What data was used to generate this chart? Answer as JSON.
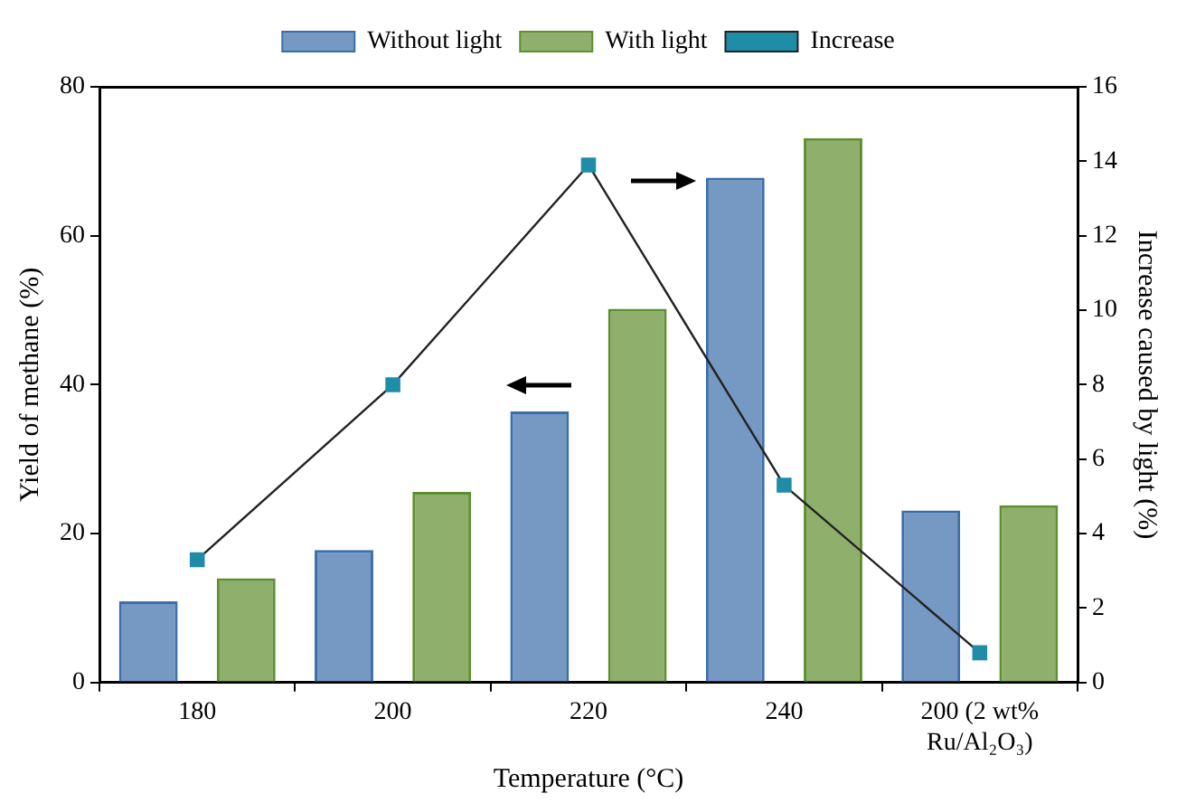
{
  "chart_data": {
    "type": "bar",
    "xlabel": "Temperature (°C)",
    "ylabel": "Yield of methane (%)",
    "y2label": "Increase caused by light (%)",
    "categories": [
      "180",
      "200",
      "220",
      "240",
      "200 (2 wt% Ru/Al₂O₃)"
    ],
    "series": [
      {
        "name": "Without light",
        "color": "#3b6ea8",
        "values": [
          10.9,
          17.8,
          36.4,
          67.8,
          23.1
        ]
      },
      {
        "name": "With light",
        "color": "#5e8f2e",
        "values": [
          14.0,
          25.6,
          50.2,
          73.1,
          23.8
        ]
      },
      {
        "name": "Increase",
        "type": "line",
        "axis": "y2",
        "color": "#1f8ca8",
        "marker": "square",
        "values": [
          3.3,
          8.0,
          13.9,
          5.3,
          0.8
        ]
      }
    ],
    "ylim": [
      0,
      80
    ],
    "yticks": [
      0,
      20,
      40,
      60,
      80
    ],
    "y2lim": [
      0,
      16
    ],
    "y2ticks": [
      0,
      2,
      4,
      6,
      8,
      10,
      12,
      14,
      16
    ],
    "grid": false,
    "legend": "top"
  }
}
